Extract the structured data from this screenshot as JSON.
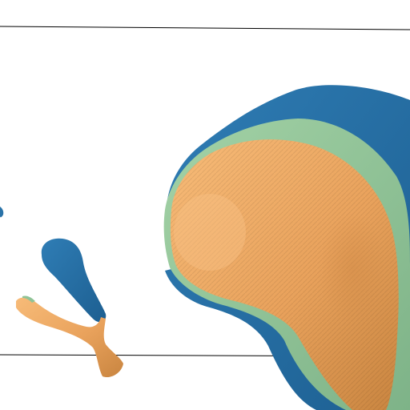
{
  "scene": {
    "description_visible_text": "",
    "background": "#ffffff",
    "colors": {
      "outer_shell": "#2a73a8",
      "middle_shell": "#8fc396",
      "inner_core": "#e8a25f",
      "inner_core_highlight": "#f4b877",
      "inner_core_shadow": "#c7833f",
      "guide_line": "#000000"
    },
    "objects": [
      "large-organ-surface",
      "small-branching-structure",
      "edge-fragment"
    ]
  }
}
